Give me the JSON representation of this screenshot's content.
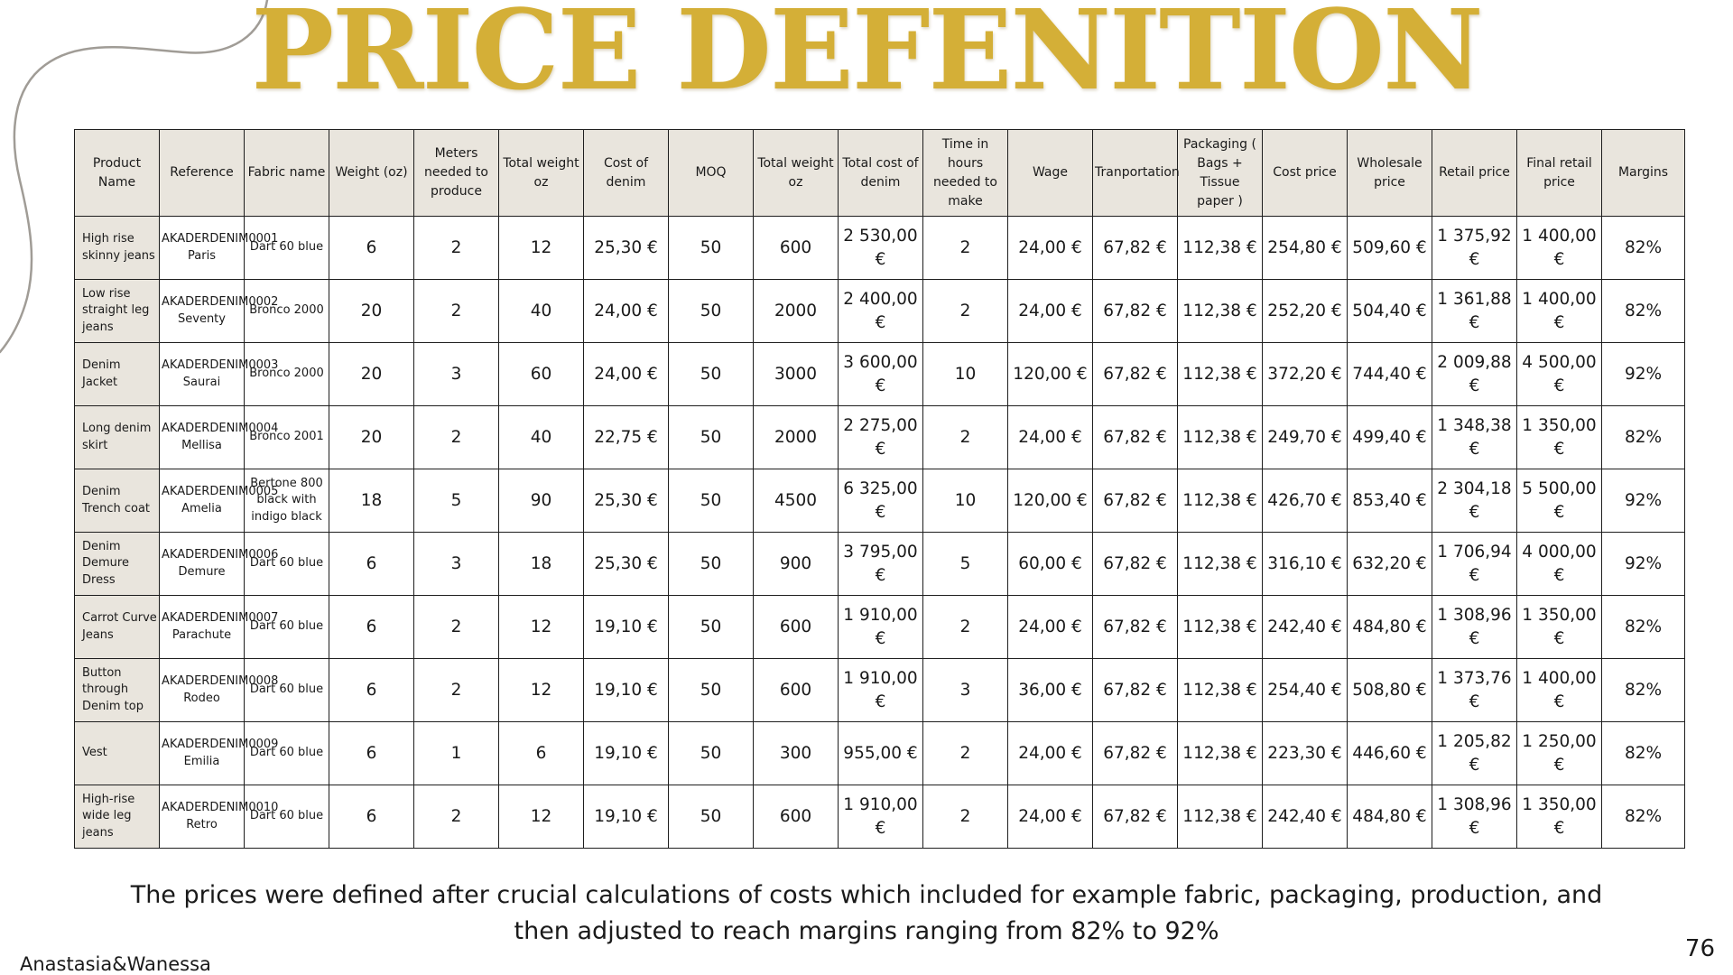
{
  "title": "PRICE DEFENITION",
  "table": {
    "headers": [
      "Product Name",
      "Reference",
      "Fabric name",
      "Weight (oz)",
      "Meters needed to produce",
      "Total weight oz",
      "Cost of denim",
      "MOQ",
      "Total weight oz",
      "Total cost of denim",
      "Time in hours needed to make",
      "Wage",
      "Tranportation",
      "Packaging ( Bags + Tissue paper )",
      "Cost price",
      "Wholesale price",
      "Retail price",
      "Final retail price",
      "Margins"
    ],
    "rows": [
      [
        "High rise skinny jeans",
        "AKADERDENIM0001 Paris",
        "Dart 60 blue",
        "6",
        "2",
        "12",
        "25,30 €",
        "50",
        "600",
        "2 530,00 €",
        "2",
        "24,00 €",
        "67,82 €",
        "112,38 €",
        "254,80 €",
        "509,60 €",
        "1 375,92 €",
        "1 400,00 €",
        "82%"
      ],
      [
        "Low rise straight leg jeans",
        "AKADERDENIM0002 Seventy",
        "Bronco 2000",
        "20",
        "2",
        "40",
        "24,00 €",
        "50",
        "2000",
        "2 400,00 €",
        "2",
        "24,00 €",
        "67,82 €",
        "112,38 €",
        "252,20 €",
        "504,40 €",
        "1 361,88 €",
        "1 400,00 €",
        "82%"
      ],
      [
        "Denim Jacket",
        "AKADERDENIM0003 Saurai",
        "Bronco 2000",
        "20",
        "3",
        "60",
        "24,00 €",
        "50",
        "3000",
        "3 600,00 €",
        "10",
        "120,00 €",
        "67,82 €",
        "112,38 €",
        "372,20 €",
        "744,40 €",
        "2 009,88 €",
        "4 500,00 €",
        "92%"
      ],
      [
        "Long denim skirt",
        "AKADERDENIM0004 Mellisa",
        "Bronco 2001",
        "20",
        "2",
        "40",
        "22,75 €",
        "50",
        "2000",
        "2 275,00 €",
        "2",
        "24,00 €",
        "67,82 €",
        "112,38 €",
        "249,70 €",
        "499,40 €",
        "1 348,38 €",
        "1 350,00 €",
        "82%"
      ],
      [
        "Denim Trench coat",
        "AKADERDENIM0005 Amelia",
        "Bertone 800 black with indigo black",
        "18",
        "5",
        "90",
        "25,30 €",
        "50",
        "4500",
        "6 325,00 €",
        "10",
        "120,00 €",
        "67,82 €",
        "112,38 €",
        "426,70 €",
        "853,40 €",
        "2 304,18 €",
        "5 500,00 €",
        "92%"
      ],
      [
        "Denim Demure Dress",
        "AKADERDENIM0006 Demure",
        "Dart 60 blue",
        "6",
        "3",
        "18",
        "25,30 €",
        "50",
        "900",
        "3 795,00 €",
        "5",
        "60,00 €",
        "67,82 €",
        "112,38 €",
        "316,10 €",
        "632,20 €",
        "1 706,94 €",
        "4 000,00 €",
        "92%"
      ],
      [
        "Carrot Curve Jeans",
        "AKADERDENIM0007 Parachute",
        "Dart 60 blue",
        "6",
        "2",
        "12",
        "19,10 €",
        "50",
        "600",
        "1 910,00 €",
        "2",
        "24,00 €",
        "67,82 €",
        "112,38 €",
        "242,40 €",
        "484,80 €",
        "1 308,96 €",
        "1 350,00 €",
        "82%"
      ],
      [
        "Button through Denim top",
        "AKADERDENIM0008 Rodeo",
        "Dart 60 blue",
        "6",
        "2",
        "12",
        "19,10 €",
        "50",
        "600",
        "1 910,00 €",
        "3",
        "36,00 €",
        "67,82 €",
        "112,38 €",
        "254,40 €",
        "508,80 €",
        "1 373,76 €",
        "1 400,00 €",
        "82%"
      ],
      [
        "Vest",
        "AKADERDENIM0009 Emilia",
        "Dart 60 blue",
        "6",
        "1",
        "6",
        "19,10 €",
        "50",
        "300",
        "955,00 €",
        "2",
        "24,00 €",
        "67,82 €",
        "112,38 €",
        "223,30 €",
        "446,60 €",
        "1 205,82 €",
        "1 250,00 €",
        "82%"
      ],
      [
        "High-rise wide leg jeans",
        "AKADERDENIM0010 Retro",
        "Dart 60 blue",
        "6",
        "2",
        "12",
        "19,10 €",
        "50",
        "600",
        "1 910,00 €",
        "2",
        "24,00 €",
        "67,82 €",
        "112,38 €",
        "242,40 €",
        "484,80 €",
        "1 308,96 €",
        "1 350,00 €",
        "82%"
      ]
    ]
  },
  "caption": "The prices were defined after crucial calculations of costs which included for example fabric, packaging, production, and then adjusted to reach margins ranging from 82% to 92%",
  "author": "Anastasia&Wanessa",
  "page_number": "76",
  "colors": {
    "title": "#d4af37",
    "header_fill": "#e9e5dd",
    "border": "#1e1e1e",
    "decorative_line": "#a09c96"
  }
}
